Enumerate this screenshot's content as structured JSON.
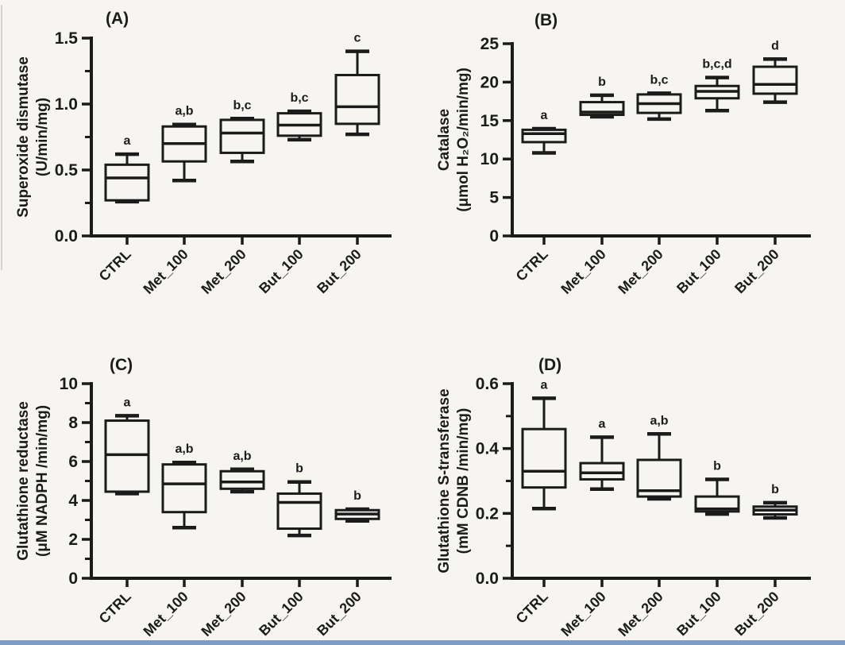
{
  "figure": {
    "background": "#f6f5f2",
    "ink_color": "#1b1b1b",
    "bottom_border_color": "#7d9cc9"
  },
  "chart_data": [
    {
      "type": "box",
      "title": "(A)",
      "ylabel_line1": "Superoxide dismutase",
      "ylabel_line2": "(U/min/mg)",
      "ylim": [
        0,
        1.5
      ],
      "yticks": [
        0,
        0.5,
        1.0,
        1.5
      ],
      "ytick_labels": [
        "0.0",
        "0.5",
        "1.0",
        "1.5"
      ],
      "minor_yticks": [
        0.25,
        0.75,
        1.25
      ],
      "grid": "off",
      "categories": [
        "CTRL",
        "Met_100",
        "Met_200",
        "But_100",
        "But_200"
      ],
      "boxes": [
        {
          "category": "CTRL",
          "whisker_low": 0.26,
          "q1": 0.27,
          "median": 0.44,
          "q3": 0.54,
          "whisker_high": 0.62,
          "letter": "a"
        },
        {
          "category": "Met_100",
          "whisker_low": 0.42,
          "q1": 0.565,
          "median": 0.7,
          "q3": 0.83,
          "whisker_high": 0.845,
          "letter": "a,b"
        },
        {
          "category": "Met_200",
          "whisker_low": 0.565,
          "q1": 0.63,
          "median": 0.78,
          "q3": 0.88,
          "whisker_high": 0.89,
          "letter": "b,c"
        },
        {
          "category": "But_100",
          "whisker_low": 0.73,
          "q1": 0.76,
          "median": 0.84,
          "q3": 0.93,
          "whisker_high": 0.945,
          "letter": "b,c"
        },
        {
          "category": "But_200",
          "whisker_low": 0.77,
          "q1": 0.85,
          "median": 0.98,
          "q3": 1.22,
          "whisker_high": 1.4,
          "letter": "c"
        }
      ]
    },
    {
      "type": "box",
      "title": "(B)",
      "ylabel_line1": "Catalase",
      "ylabel_line2": "(μmol H₂O₂/min/mg)",
      "ylim": [
        0,
        25
      ],
      "yticks": [
        0,
        5,
        10,
        15,
        20,
        25
      ],
      "ytick_labels": [
        "0",
        "5",
        "10",
        "15",
        "20",
        "25"
      ],
      "minor_yticks": [],
      "grid": "off",
      "categories": [
        "CTRL",
        "Met_100",
        "Met_200",
        "But_100",
        "But_200"
      ],
      "boxes": [
        {
          "category": "CTRL",
          "whisker_low": 10.8,
          "q1": 12.2,
          "median": 13.3,
          "q3": 13.8,
          "whisker_high": 13.95,
          "letter": "a"
        },
        {
          "category": "Met_100",
          "whisker_low": 15.5,
          "q1": 15.75,
          "median": 16.1,
          "q3": 17.4,
          "whisker_high": 18.3,
          "letter": "b"
        },
        {
          "category": "Met_200",
          "whisker_low": 15.2,
          "q1": 16.0,
          "median": 17.2,
          "q3": 18.4,
          "whisker_high": 18.55,
          "letter": "b,c"
        },
        {
          "category": "But_100",
          "whisker_low": 16.3,
          "q1": 17.9,
          "median": 18.8,
          "q3": 19.5,
          "whisker_high": 20.6,
          "letter": "b,c,d"
        },
        {
          "category": "But_200",
          "whisker_low": 17.4,
          "q1": 18.5,
          "median": 19.7,
          "q3": 22.0,
          "whisker_high": 23.0,
          "letter": "d"
        }
      ]
    },
    {
      "type": "box",
      "title": "(C)",
      "ylabel_line1": "Glutathione reductase",
      "ylabel_line2": "(μM NADPH /min/mg)",
      "ylim": [
        0,
        10
      ],
      "yticks": [
        0,
        2,
        4,
        6,
        8,
        10
      ],
      "ytick_labels": [
        "0",
        "2",
        "4",
        "6",
        "8",
        "10"
      ],
      "minor_yticks": [
        1,
        3,
        5,
        7,
        9
      ],
      "grid": "off",
      "categories": [
        "CTRL",
        "Met_100",
        "Met_200",
        "But_100",
        "But_200"
      ],
      "boxes": [
        {
          "category": "CTRL",
          "whisker_low": 4.35,
          "q1": 4.45,
          "median": 6.35,
          "q3": 8.1,
          "whisker_high": 8.35,
          "letter": "a"
        },
        {
          "category": "Met_100",
          "whisker_low": 2.6,
          "q1": 3.4,
          "median": 4.85,
          "q3": 5.85,
          "whisker_high": 5.95,
          "letter": "a,b"
        },
        {
          "category": "Met_200",
          "whisker_low": 4.45,
          "q1": 4.6,
          "median": 4.95,
          "q3": 5.5,
          "whisker_high": 5.6,
          "letter": "a,b"
        },
        {
          "category": "But_100",
          "whisker_low": 2.2,
          "q1": 2.55,
          "median": 3.9,
          "q3": 4.35,
          "whisker_high": 4.95,
          "letter": "b"
        },
        {
          "category": "But_200",
          "whisker_low": 2.95,
          "q1": 3.05,
          "median": 3.3,
          "q3": 3.5,
          "whisker_high": 3.55,
          "letter": "b"
        }
      ]
    },
    {
      "type": "box",
      "title": "(D)",
      "ylabel_line1": "Glutathione S-transferase",
      "ylabel_line2": "(mM CDNB /min/mg)",
      "ylim": [
        0,
        0.6
      ],
      "yticks": [
        0,
        0.2,
        0.4,
        0.6
      ],
      "ytick_labels": [
        "0.0",
        "0.2",
        "0.4",
        "0.6"
      ],
      "minor_yticks": [
        0.1,
        0.3,
        0.5
      ],
      "grid": "off",
      "categories": [
        "CTRL",
        "Met_100",
        "Met_200",
        "But_100",
        "But_200"
      ],
      "boxes": [
        {
          "category": "CTRL",
          "whisker_low": 0.215,
          "q1": 0.28,
          "median": 0.33,
          "q3": 0.46,
          "whisker_high": 0.555,
          "letter": "a"
        },
        {
          "category": "Met_100",
          "whisker_low": 0.275,
          "q1": 0.305,
          "median": 0.325,
          "q3": 0.355,
          "whisker_high": 0.435,
          "letter": "a"
        },
        {
          "category": "Met_200",
          "whisker_low": 0.245,
          "q1": 0.252,
          "median": 0.27,
          "q3": 0.365,
          "whisker_high": 0.445,
          "letter": "a,b"
        },
        {
          "category": "But_100",
          "whisker_low": 0.198,
          "q1": 0.206,
          "median": 0.214,
          "q3": 0.252,
          "whisker_high": 0.305,
          "letter": "b"
        },
        {
          "category": "But_200",
          "whisker_low": 0.186,
          "q1": 0.197,
          "median": 0.21,
          "q3": 0.221,
          "whisker_high": 0.233,
          "letter": "b"
        }
      ]
    }
  ]
}
